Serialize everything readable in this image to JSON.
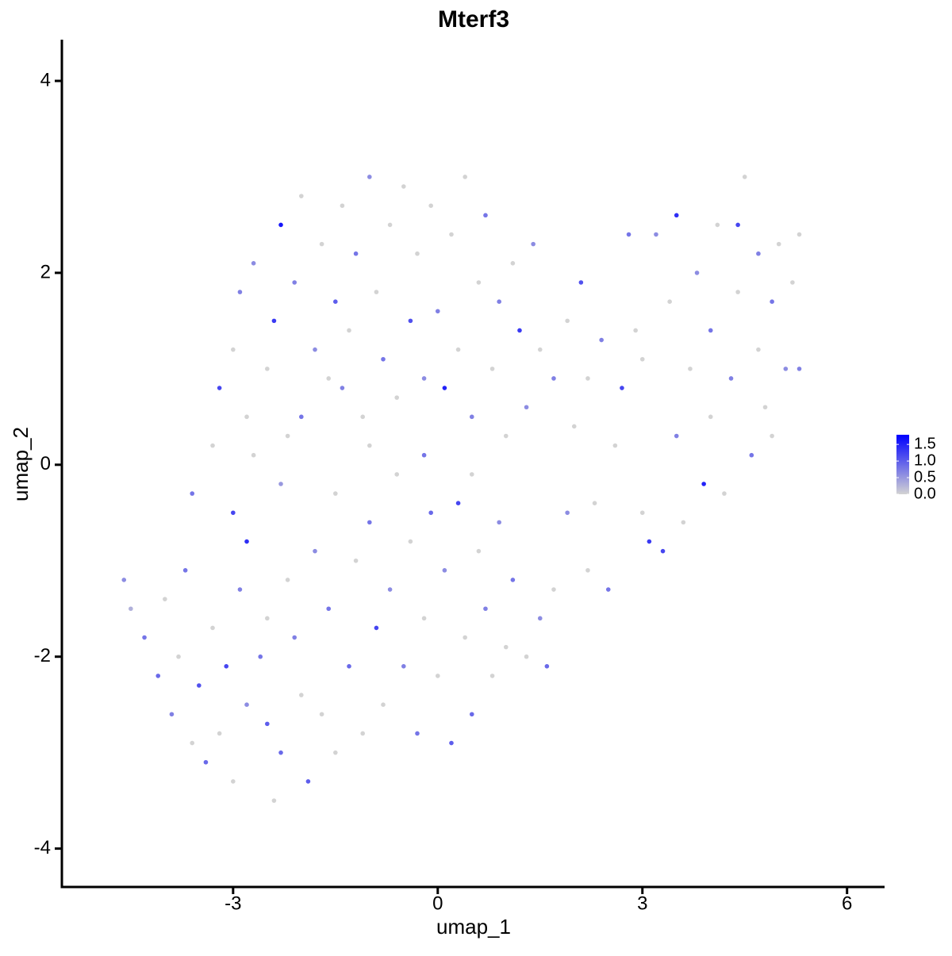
{
  "chart_data": {
    "type": "scatter",
    "title": "Mterf3",
    "xlabel": "umap_1",
    "ylabel": "umap_2",
    "xlim": [
      -5.51,
      6.55
    ],
    "ylim": [
      -4.4,
      4.43
    ],
    "xticks": [
      -3,
      0,
      3,
      6
    ],
    "yticks": [
      -4,
      -2,
      0,
      2,
      4
    ],
    "colorbar": {
      "lim": [
        0,
        1.79
      ],
      "low": "#d3d3d3",
      "high": "#0000ff",
      "ticks": [
        {
          "value": 0,
          "label": "0.0"
        },
        0.5,
        {
          "value": 1,
          "label": "1.0"
        },
        1.5
      ]
    },
    "x": [
      -4.6,
      -4.5,
      -4.3,
      -4.1,
      -4.0,
      -3.9,
      -3.8,
      -3.7,
      -3.6,
      -3.5,
      -3.4,
      -3.3,
      -3.2,
      -3.1,
      -3.0,
      -3.0,
      -2.9,
      -2.8,
      -2.8,
      -2.7,
      -2.6,
      -2.5,
      -2.5,
      -2.4,
      -2.3,
      -2.3,
      -2.2,
      -2.1,
      -2.0,
      -2.0,
      -1.9,
      -1.8,
      -1.7,
      -1.6,
      -1.5,
      -1.5,
      -1.4,
      -1.3,
      -1.2,
      -1.1,
      -1.0,
      -1.0,
      -0.9,
      -0.8,
      -0.7,
      -0.6,
      -0.5,
      -0.4,
      -0.3,
      -0.2,
      -0.1,
      0.0,
      0.1,
      0.2,
      0.3,
      0.4,
      0.5,
      0.6,
      0.7,
      0.8,
      0.9,
      1.0,
      1.1,
      1.3,
      1.5,
      1.7,
      1.6,
      -3.6,
      -3.3,
      -3.2,
      -3.0,
      -2.9,
      -2.8,
      -2.7,
      -2.5,
      -2.4,
      -2.3,
      -2.2,
      -2.1,
      -2.0,
      -1.8,
      -1.7,
      -1.6,
      -1.5,
      -1.4,
      -1.3,
      -1.2,
      -1.1,
      -1.0,
      -0.9,
      -0.8,
      -0.7,
      -0.6,
      -0.5,
      -0.4,
      -0.3,
      -0.2,
      -0.1,
      0.0,
      0.1,
      0.2,
      0.3,
      0.4,
      0.5,
      0.6,
      0.7,
      0.8,
      0.9,
      1.0,
      1.1,
      1.2,
      1.3,
      1.5,
      1.4,
      0.5,
      -0.2,
      1.7,
      1.9,
      2.0,
      2.1,
      2.2,
      2.3,
      2.4,
      2.5,
      2.6,
      2.7,
      2.8,
      2.9,
      3.0,
      3.1,
      3.2,
      3.3,
      3.4,
      3.5,
      3.5,
      3.6,
      3.7,
      3.8,
      3.9,
      4.0,
      4.0,
      4.1,
      4.2,
      4.3,
      4.4,
      4.4,
      4.5,
      4.6,
      4.7,
      4.7,
      4.8,
      4.9,
      5.0,
      5.1,
      5.2,
      5.3,
      5.3,
      4.9,
      3.0,
      2.2,
      1.9
    ],
    "y": [
      -1.2,
      -1.5,
      -1.8,
      -2.2,
      -1.4,
      -2.6,
      -2.0,
      -1.1,
      -2.9,
      -2.3,
      -3.1,
      -1.7,
      -2.8,
      -2.1,
      -0.5,
      -3.3,
      -1.3,
      -0.8,
      -2.5,
      0.1,
      -2.0,
      -1.6,
      -2.7,
      -3.5,
      -3.0,
      -0.2,
      -1.2,
      -1.8,
      -2.4,
      0.5,
      -3.3,
      -0.9,
      -2.6,
      -1.5,
      -3.0,
      -0.3,
      0.8,
      -2.1,
      -1.0,
      -2.8,
      -0.6,
      0.2,
      -1.7,
      -2.5,
      -1.3,
      -0.1,
      -2.1,
      -0.8,
      -2.8,
      -1.6,
      -0.5,
      -2.2,
      -1.1,
      -2.9,
      -0.4,
      -1.8,
      -2.6,
      -0.9,
      -1.5,
      -2.2,
      -0.6,
      -1.9,
      -1.2,
      -2.0,
      -1.6,
      -1.3,
      -2.1,
      -0.3,
      0.2,
      0.8,
      1.2,
      1.8,
      0.5,
      2.1,
      1.0,
      1.5,
      2.5,
      0.3,
      1.9,
      2.8,
      1.2,
      2.3,
      0.9,
      1.7,
      2.7,
      1.4,
      2.2,
      0.5,
      3.0,
      1.8,
      1.1,
      2.5,
      0.7,
      2.9,
      1.5,
      2.2,
      0.9,
      2.7,
      1.6,
      0.8,
      2.4,
      1.2,
      3.0,
      0.5,
      1.9,
      2.6,
      1.0,
      1.7,
      0.3,
      2.1,
      1.4,
      0.6,
      1.2,
      2.3,
      -0.1,
      0.1,
      0.9,
      1.5,
      0.4,
      1.9,
      0.9,
      -0.4,
      1.3,
      -1.3,
      0.2,
      0.8,
      2.4,
      1.4,
      -0.5,
      -0.8,
      2.4,
      -0.9,
      1.7,
      0.3,
      2.6,
      -0.6,
      1.0,
      2.0,
      -0.2,
      0.5,
      1.4,
      2.5,
      -0.3,
      0.9,
      1.8,
      2.5,
      3.0,
      0.1,
      1.2,
      2.2,
      0.6,
      1.7,
      2.3,
      1.0,
      1.9,
      2.4,
      1.0,
      0.3,
      1.1,
      -1.1,
      -0.5
    ],
    "values": [
      0.6,
      0.3,
      0.8,
      0.9,
      0,
      0.7,
      0,
      0.8,
      0,
      1.1,
      0.9,
      0,
      0,
      1.2,
      1.2,
      0,
      0.7,
      1.4,
      0.6,
      0,
      0.8,
      0,
      1.0,
      0,
      0.9,
      0.5,
      0,
      0.7,
      0,
      0.8,
      1.0,
      0.6,
      0,
      0.8,
      0,
      0,
      0.7,
      0.9,
      0,
      0,
      0.8,
      0,
      1.2,
      0,
      0.6,
      0,
      0.7,
      0,
      0.8,
      0,
      0.9,
      0,
      0.6,
      1.0,
      1.2,
      0,
      0.9,
      0,
      0.7,
      0,
      0.6,
      0,
      0.8,
      0,
      0.6,
      0,
      0.9,
      0.8,
      0,
      1.2,
      0,
      0.7,
      0,
      0.6,
      0,
      1.3,
      1.6,
      0,
      0.7,
      0,
      0.6,
      0,
      0,
      1.0,
      0,
      0,
      0.8,
      0,
      0.6,
      0,
      0.8,
      0,
      0,
      0,
      1.1,
      0,
      0.6,
      0,
      0.7,
      1.5,
      0,
      0,
      0,
      0.7,
      0,
      0.8,
      0,
      0.7,
      0,
      0,
      1.3,
      0.6,
      0,
      0.6,
      0,
      0.8,
      0.7,
      0,
      0,
      1.1,
      0,
      0,
      0.7,
      0.8,
      0,
      1.2,
      0.8,
      0,
      0,
      1.3,
      0.6,
      1.2,
      0,
      0.7,
      1.4,
      0,
      0,
      0.6,
      1.5,
      0,
      0.8,
      0,
      0,
      0.7,
      0,
      1.2,
      0,
      0.8,
      0,
      0.7,
      0,
      0.8,
      0,
      0.6,
      0,
      0,
      0.7,
      0,
      0,
      0,
      0.6
    ]
  }
}
